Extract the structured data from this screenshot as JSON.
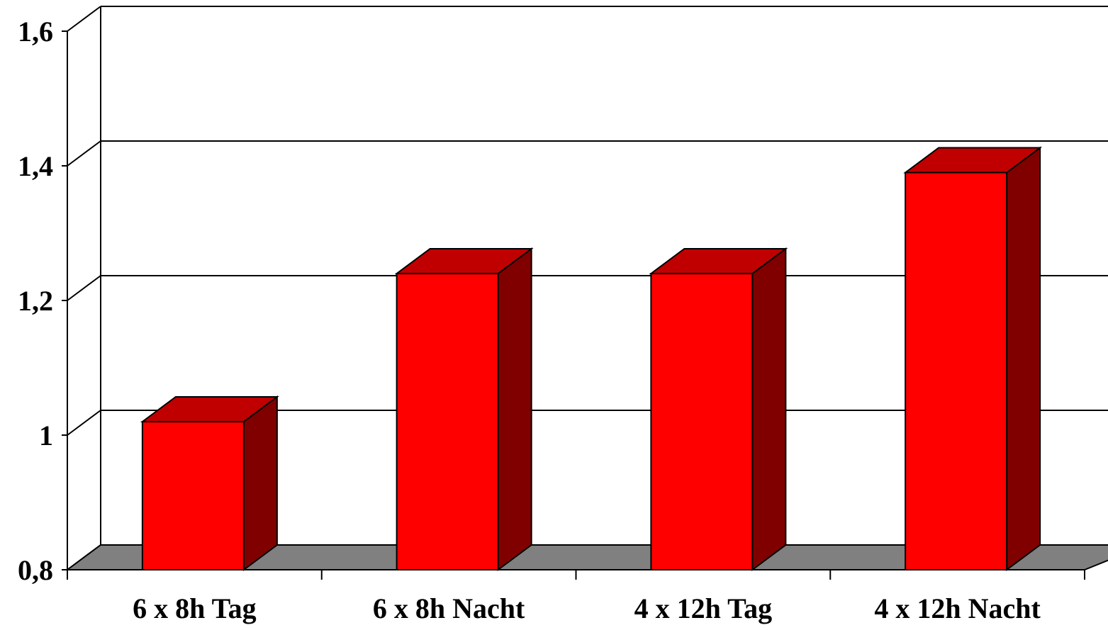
{
  "chart_data": {
    "type": "bar",
    "style": "3d-column",
    "title": "",
    "xlabel": "",
    "ylabel": "",
    "ylim": [
      0.8,
      1.6
    ],
    "yticks": [
      {
        "value": 0.8,
        "label": "0,8"
      },
      {
        "value": 1.0,
        "label": "1"
      },
      {
        "value": 1.2,
        "label": "1,2"
      },
      {
        "value": 1.4,
        "label": "1,4"
      },
      {
        "value": 1.6,
        "label": "1,6"
      }
    ],
    "categories": [
      "6 x 8h Tag",
      "6 x 8h Nacht",
      "4 x 12h Tag",
      "4 x 12h Nacht"
    ],
    "values": [
      1.02,
      1.24,
      1.24,
      1.39
    ],
    "grid": true,
    "legend": "none",
    "colors": {
      "bar_front": "#ff0000",
      "bar_top": "#c00000",
      "bar_side": "#800000",
      "floor": "#808080",
      "outline": "#000000",
      "background": "#ffffff"
    }
  }
}
